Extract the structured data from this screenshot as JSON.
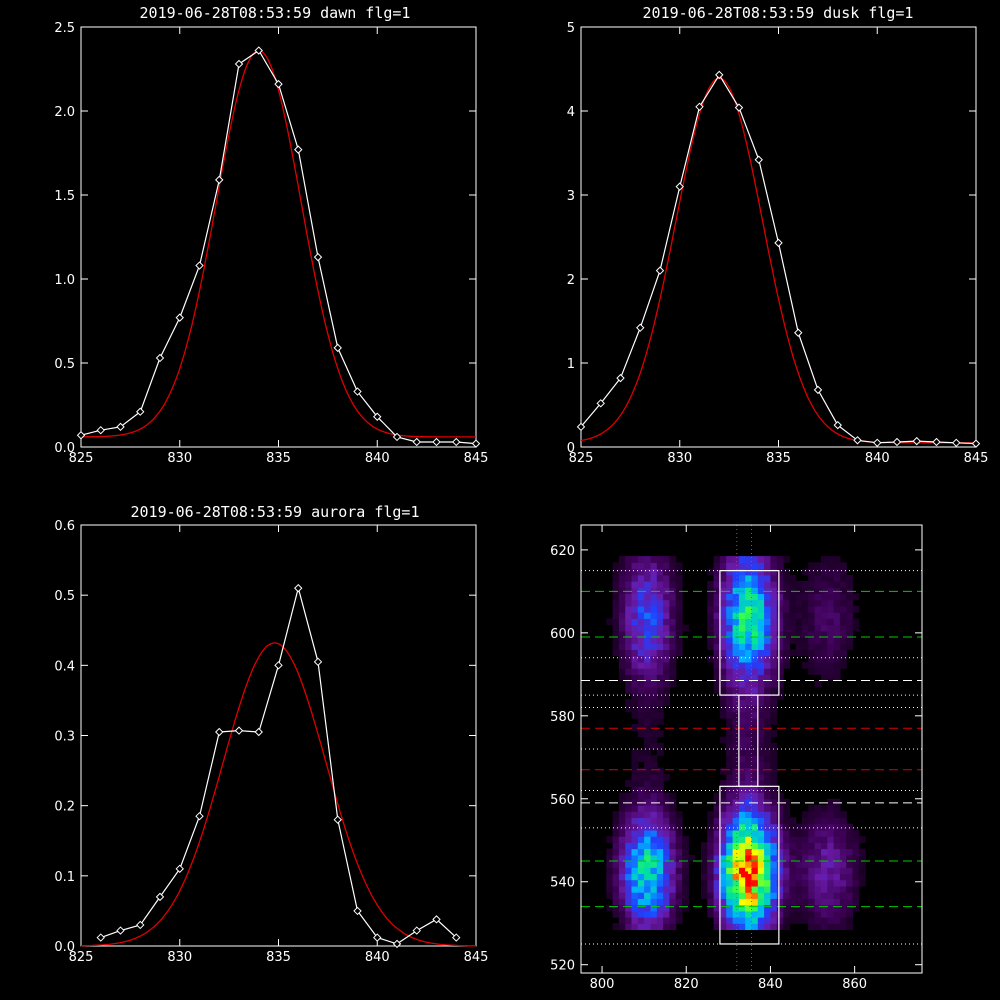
{
  "chart_data": [
    {
      "type": "line",
      "title": "2019-06-28T08:53:59 dawn flg=1",
      "xlim": [
        825,
        845
      ],
      "ylim": [
        0,
        2.5
      ],
      "xticks": [
        825,
        830,
        835,
        840,
        845
      ],
      "yticks": [
        "0.0",
        "0.5",
        "1.0",
        "1.5",
        "2.0",
        "2.5"
      ],
      "colors": {
        "data": "#ffffff",
        "fit": "#dd0000"
      },
      "series": [
        {
          "kind": "data",
          "x": [
            825,
            826,
            827,
            828,
            829,
            830,
            831,
            832,
            833,
            834,
            835,
            836,
            837,
            838,
            839,
            840,
            841,
            842,
            843,
            844,
            845
          ],
          "y": [
            0.07,
            0.1,
            0.12,
            0.21,
            0.53,
            0.77,
            1.08,
            1.59,
            2.28,
            2.36,
            2.16,
            1.77,
            1.13,
            0.59,
            0.33,
            0.18,
            0.06,
            0.03,
            0.03,
            0.03,
            0.02
          ]
        },
        {
          "kind": "fit",
          "gauss": {
            "a": 2.3,
            "mu": 834.0,
            "sigma": 2.15,
            "c": 0.06
          }
        }
      ]
    },
    {
      "type": "line",
      "title": "2019-06-28T08:53:59 dusk flg=1",
      "xlim": [
        825,
        845
      ],
      "ylim": [
        0,
        5
      ],
      "xticks": [
        825,
        830,
        835,
        840,
        845
      ],
      "yticks": [
        "0",
        "1",
        "2",
        "3",
        "4",
        "5"
      ],
      "colors": {
        "data": "#ffffff",
        "fit": "#dd0000"
      },
      "series": [
        {
          "kind": "data",
          "x": [
            825,
            826,
            827,
            828,
            829,
            830,
            831,
            832,
            833,
            834,
            835,
            836,
            837,
            838,
            839,
            840,
            841,
            842,
            843,
            844,
            845
          ],
          "y": [
            0.24,
            0.52,
            0.82,
            1.42,
            2.1,
            3.1,
            4.05,
            4.43,
            4.04,
            3.42,
            2.43,
            1.36,
            0.68,
            0.26,
            0.08,
            0.05,
            0.06,
            0.07,
            0.06,
            0.05,
            0.04
          ]
        },
        {
          "kind": "fit",
          "gauss": {
            "a": 4.34,
            "mu": 832.0,
            "sigma": 2.2,
            "c": 0.05
          }
        }
      ]
    },
    {
      "type": "line",
      "title": "2019-06-28T08:53:59 aurora flg=1",
      "xlim": [
        825,
        845
      ],
      "ylim": [
        0,
        0.6
      ],
      "xticks": [
        825,
        830,
        835,
        840,
        845
      ],
      "yticks": [
        "0.0",
        "0.1",
        "0.2",
        "0.3",
        "0.4",
        "0.5",
        "0.6"
      ],
      "colors": {
        "data": "#ffffff",
        "fit": "#dd0000"
      },
      "series": [
        {
          "kind": "data",
          "x": [
            826,
            827,
            828,
            829,
            830,
            831,
            832,
            833,
            834,
            835,
            836,
            837,
            838,
            839,
            840,
            841,
            842,
            843,
            844
          ],
          "y": [
            0.012,
            0.022,
            0.03,
            0.07,
            0.11,
            0.185,
            0.305,
            0.307,
            0.305,
            0.4,
            0.51,
            0.405,
            0.18,
            0.05,
            0.012,
            0.003,
            0.022,
            0.038,
            0.012
          ]
        },
        {
          "kind": "fit",
          "gauss": {
            "a": 0.432,
            "mu": 834.8,
            "sigma": 2.6,
            "c": 0.0
          }
        }
      ]
    },
    {
      "type": "heatmap",
      "title": "",
      "xlim": [
        795,
        876
      ],
      "ylim": [
        518,
        626
      ],
      "xticks": [
        800,
        820,
        840,
        860
      ],
      "yticks": [
        520,
        540,
        560,
        580,
        600,
        620
      ],
      "colormap": [
        "#000000",
        "#3b0052",
        "#6a1aa8",
        "#2040ff",
        "#00b0ff",
        "#00e0a0",
        "#40ff40",
        "#ffff00",
        "#ff8000",
        "#ff0000"
      ],
      "emission_columns": [
        {
          "center_x": 810,
          "halfwidth": 4.5,
          "strength": 0.55
        },
        {
          "center_x": 834,
          "halfwidth": 4.5,
          "strength": 1.0
        },
        {
          "center_x": 853,
          "halfwidth": 5.0,
          "strength": 0.22
        }
      ],
      "emission_blobs": [
        {
          "center_y": 542,
          "sigma_y": 9,
          "weight": 1.0
        },
        {
          "center_y": 603,
          "sigma_y": 10,
          "weight": 0.55
        }
      ],
      "peak_pixel": {
        "x": 833,
        "y": 541
      },
      "boxes": [
        {
          "x0": 828,
          "x1": 842,
          "y0": 525,
          "y1": 563
        },
        {
          "x0": 828,
          "x1": 842,
          "y0": 585,
          "y1": 615
        },
        {
          "x0": 832.5,
          "x1": 837,
          "y0": 563,
          "y1": 585
        }
      ],
      "hlines": [
        {
          "y": 615,
          "style": "dotted",
          "color": "#ffffff"
        },
        {
          "y": 610,
          "style": "dashed",
          "color": "#00cc00"
        },
        {
          "y": 599,
          "style": "dashed",
          "color": "#00cc00"
        },
        {
          "y": 594,
          "style": "dotted",
          "color": "#ffffff"
        },
        {
          "y": 588.5,
          "style": "dashed",
          "color": "#ffffff"
        },
        {
          "y": 585,
          "style": "dotted",
          "color": "#ffffff"
        },
        {
          "y": 582,
          "style": "dotted",
          "color": "#ffffff"
        },
        {
          "y": 577,
          "style": "dashed",
          "color": "#dd0000"
        },
        {
          "y": 572,
          "style": "dotted",
          "color": "#ffffff"
        },
        {
          "y": 567,
          "style": "dashed",
          "color": "#dd0000"
        },
        {
          "y": 562,
          "style": "dotted",
          "color": "#ffffff"
        },
        {
          "y": 559,
          "style": "dashed",
          "color": "#ffffff"
        },
        {
          "y": 553,
          "style": "dotted",
          "color": "#ffffff"
        },
        {
          "y": 545,
          "style": "dashed",
          "color": "#00cc00"
        },
        {
          "y": 534,
          "style": "dashed",
          "color": "#00cc00"
        },
        {
          "y": 525,
          "style": "dotted",
          "color": "#ffffff"
        }
      ],
      "vlines": [
        {
          "x": 832,
          "style": "dotted",
          "color": "#ff00ff"
        },
        {
          "x": 835.5,
          "style": "dotted",
          "color": "#ff00ff"
        }
      ]
    }
  ]
}
